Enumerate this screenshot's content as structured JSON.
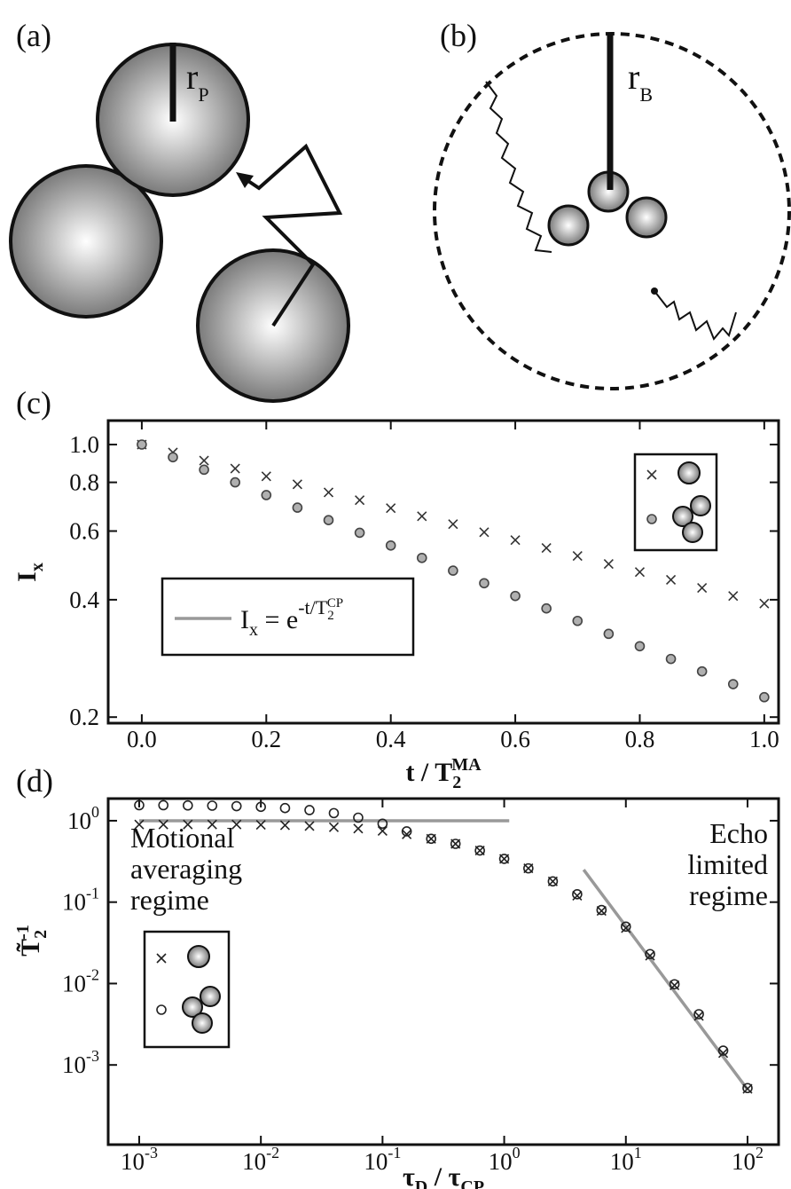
{
  "diagram_a": {
    "label": "(a)",
    "radius": "r",
    "radius_sub": "P"
  },
  "diagram_b": {
    "label": "(b)",
    "radius": "r",
    "radius_sub": "B"
  },
  "chart_data": [
    {
      "type": "scatter",
      "panel_label": "(c)",
      "x_label": [
        "t / T",
        "2",
        "MA"
      ],
      "y_label": [
        "I",
        "x"
      ],
      "xlim": [
        -0.054,
        1.023
      ],
      "ylim": [
        0.193,
        1.152
      ],
      "ylog": true,
      "grid": false,
      "xticks": [
        {
          "value": 0,
          "label": "0.0"
        },
        0.2,
        0.4,
        0.6,
        0.8,
        {
          "value": 1,
          "label": "1.0"
        }
      ],
      "yticks": [
        0.2,
        0.4,
        0.6,
        0.8,
        {
          "value": 1,
          "label": "1.0"
        }
      ],
      "x": [
        0,
        0.05,
        0.1,
        0.15,
        0.2,
        0.25,
        0.3,
        0.35,
        0.4,
        0.45,
        0.5,
        0.55,
        0.6,
        0.65,
        0.7,
        0.75,
        0.8,
        0.85,
        0.9,
        0.95,
        1
      ],
      "series": [
        {
          "marker": "x",
          "color": "#333333",
          "values": [
            1.0,
            0.954,
            0.91,
            0.868,
            0.829,
            0.791,
            0.754,
            0.72,
            0.687,
            0.655,
            0.625,
            0.596,
            0.569,
            0.543,
            0.518,
            0.494,
            0.471,
            0.45,
            0.429,
            0.409,
            0.391
          ]
        },
        {
          "marker": "o",
          "color": "#444444",
          "fill": "#b0b0b0",
          "values": [
            1.0,
            0.928,
            0.862,
            0.8,
            0.742,
            0.689,
            0.64,
            0.594,
            0.551,
            0.512,
            0.475,
            0.441,
            0.409,
            0.38,
            0.353,
            0.327,
            0.304,
            0.282,
            0.262,
            0.243,
            0.225
          ]
        }
      ],
      "fit": {
        "color": "#999999",
        "label": [
          "I",
          "x",
          " = e",
          "-t/T",
          "2",
          "CP"
        ]
      }
    },
    {
      "type": "scatter",
      "panel_label": "(d)",
      "x_label": [
        "τ",
        "D",
        " / τ",
        "CP"
      ],
      "y_label": [
        "T̃",
        "2",
        "-1"
      ],
      "xlim": [
        0.000556,
        180
      ],
      "ylim": [
        0.000105,
        1.87
      ],
      "xlog": true,
      "ylog": true,
      "grid": false,
      "xticks": [
        {
          "value": 0.001,
          "label": "10",
          "sup": "-3"
        },
        {
          "value": 0.01,
          "label": "10",
          "sup": "-2"
        },
        {
          "value": 0.1,
          "label": "10",
          "sup": "-1"
        },
        {
          "value": 1,
          "label": "10",
          "sup": "0"
        },
        {
          "value": 10,
          "label": "10",
          "sup": "1"
        },
        {
          "value": 100,
          "label": "10",
          "sup": "2"
        }
      ],
      "yticks": [
        {
          "value": 0.001,
          "label": "10",
          "sup": "-3"
        },
        {
          "value": 0.01,
          "label": "10",
          "sup": "-2"
        },
        {
          "value": 0.1,
          "label": "10",
          "sup": "-1"
        },
        {
          "value": 1,
          "label": "10",
          "sup": "0"
        }
      ],
      "x": [
        0.001,
        0.00158,
        0.00251,
        0.00398,
        0.00631,
        0.01,
        0.0158,
        0.0251,
        0.0398,
        0.0631,
        0.1,
        0.158,
        0.251,
        0.398,
        0.631,
        1,
        1.58,
        2.51,
        3.98,
        6.31,
        10,
        15.8,
        25.1,
        39.8,
        63.1,
        100
      ],
      "series": [
        {
          "marker": "line",
          "color": "#999999",
          "x": [
            0.001,
            1.1
          ],
          "values": [
            1,
            1
          ]
        },
        {
          "marker": "line",
          "color": "#999999",
          "x": [
            4.5,
            100
          ],
          "values": [
            0.25,
            0.0005
          ]
        },
        {
          "marker": "x",
          "color": "#222222",
          "values": [
            0.9,
            0.9,
            0.9,
            0.9,
            0.9,
            0.89,
            0.88,
            0.86,
            0.83,
            0.8,
            0.75,
            0.68,
            0.6,
            0.52,
            0.43,
            0.34,
            0.26,
            0.18,
            0.12,
            0.078,
            0.048,
            0.022,
            0.0095,
            0.004,
            0.0014,
            0.00051
          ]
        },
        {
          "marker": "o",
          "color": "#222222",
          "values": [
            1.55,
            1.55,
            1.54,
            1.53,
            1.51,
            1.48,
            1.43,
            1.35,
            1.24,
            1.09,
            0.92,
            0.74,
            0.6,
            0.52,
            0.43,
            0.34,
            0.26,
            0.18,
            0.125,
            0.08,
            0.05,
            0.023,
            0.0098,
            0.0042,
            0.0015,
            0.00052
          ]
        }
      ],
      "annotations": [
        {
          "lines": [
            "Motional",
            "averaging",
            "regime"
          ]
        },
        {
          "lines": [
            "Echo",
            "limited",
            "regime"
          ]
        }
      ]
    }
  ]
}
